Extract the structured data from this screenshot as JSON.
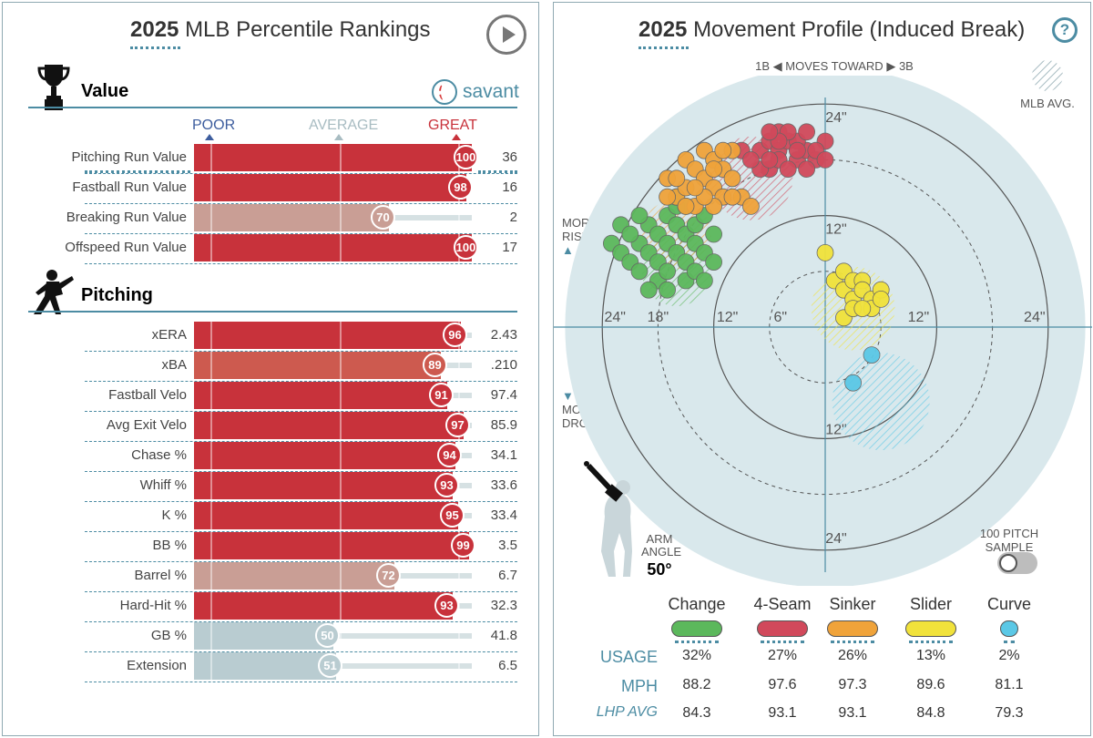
{
  "left": {
    "title_year": "2025",
    "title_rest": "MLB Percentile Rankings",
    "savant_label": "savant",
    "scale": {
      "poor": "POOR",
      "average": "AVERAGE",
      "great": "GREAT"
    },
    "sections": [
      {
        "label": "Value",
        "icon": "trophy-icon"
      },
      {
        "label": "Pitching",
        "icon": "pitcher-icon"
      }
    ],
    "value_rows": [
      {
        "label": "Pitching Run Value",
        "pct": 100,
        "value": "36"
      },
      {
        "label": "Fastball Run Value",
        "pct": 98,
        "value": "16"
      },
      {
        "label": "Breaking Run Value",
        "pct": 70,
        "value": "2"
      },
      {
        "label": "Offspeed Run Value",
        "pct": 100,
        "value": "17"
      }
    ],
    "pitching_rows": [
      {
        "label": "xERA",
        "pct": 96,
        "value": "2.43"
      },
      {
        "label": "xBA",
        "pct": 89,
        "value": ".210"
      },
      {
        "label": "Fastball Velo",
        "pct": 91,
        "value": "97.4"
      },
      {
        "label": "Avg Exit Velo",
        "pct": 97,
        "value": "85.9"
      },
      {
        "label": "Chase %",
        "pct": 94,
        "value": "34.1"
      },
      {
        "label": "Whiff %",
        "pct": 93,
        "value": "33.6"
      },
      {
        "label": "K %",
        "pct": 95,
        "value": "33.4"
      },
      {
        "label": "BB %",
        "pct": 99,
        "value": "3.5"
      },
      {
        "label": "Barrel %",
        "pct": 72,
        "value": "6.7"
      },
      {
        "label": "Hard-Hit %",
        "pct": 93,
        "value": "32.3"
      },
      {
        "label": "GB %",
        "pct": 50,
        "value": "41.8"
      },
      {
        "label": "Extension",
        "pct": 51,
        "value": "6.5"
      }
    ],
    "colors": {
      "great": "#c8323b",
      "good": "#cd5a4f",
      "mid": "#c99e95",
      "average": "#b9ccd1",
      "poor": "#3d5d9e"
    }
  },
  "right": {
    "title_year": "2025",
    "title_rest": "Movement Profile (Induced Break)",
    "help_label": "?",
    "direction": {
      "left": "1B",
      "middle": "MOVES TOWARD",
      "right": "3B"
    },
    "mlb_avg_label": "MLB AVG.",
    "more_rise": [
      "MORE",
      "RISE"
    ],
    "more_drop": [
      "MORE",
      "DROP"
    ],
    "ring_labels": {
      "r24": "24\"",
      "r18": "18\"",
      "r12": "12\"",
      "r6": "6\""
    },
    "arm_angle_label": [
      "ARM",
      "ANGLE"
    ],
    "arm_angle_value": "50°",
    "sample_label": [
      "100 PITCH",
      "SAMPLE"
    ],
    "pitch_types": [
      {
        "name": "Change",
        "color": "#5cb85c",
        "usage": "32%",
        "mph": "88.2",
        "lhp_avg": "84.3"
      },
      {
        "name": "4-Seam",
        "color": "#d1495b",
        "usage": "27%",
        "mph": "97.6",
        "lhp_avg": "93.1"
      },
      {
        "name": "Sinker",
        "color": "#f0a33a",
        "usage": "26%",
        "mph": "97.3",
        "lhp_avg": "93.1"
      },
      {
        "name": "Slider",
        "color": "#f1e23b",
        "usage": "13%",
        "mph": "89.6",
        "lhp_avg": "84.8"
      },
      {
        "name": "Curve",
        "color": "#5bc8e6",
        "usage": "2%",
        "mph": "81.1",
        "lhp_avg": "79.3"
      }
    ],
    "table_labels": {
      "usage": "USAGE",
      "mph": "MPH",
      "lhp_avg": "LHP AVG"
    },
    "chart_data": {
      "type": "scatter",
      "xlabel": "",
      "ylabel": "",
      "xlim": [
        -30,
        30
      ],
      "ylim": [
        -30,
        30
      ],
      "units": "inches",
      "series": [
        {
          "name": "Change",
          "color": "#5cb85c",
          "points": [
            [
              -23,
              9
            ],
            [
              -22,
              11
            ],
            [
              -22,
              8
            ],
            [
              -21,
              7
            ],
            [
              -20,
              6
            ],
            [
              -20,
              9
            ],
            [
              -19,
              11
            ],
            [
              -19,
              8
            ],
            [
              -18,
              10
            ],
            [
              -18,
              7
            ],
            [
              -18,
              5
            ],
            [
              -17,
              12
            ],
            [
              -17,
              9
            ],
            [
              -17,
              6
            ],
            [
              -16,
              11
            ],
            [
              -16,
              8
            ],
            [
              -16,
              13
            ],
            [
              -15,
              10
            ],
            [
              -15,
              7
            ],
            [
              -15,
              5
            ],
            [
              -14,
              11
            ],
            [
              -14,
              9
            ],
            [
              -14,
              6
            ],
            [
              -13,
              12
            ],
            [
              -13,
              8
            ],
            [
              -13,
              5
            ],
            [
              -12,
              10
            ],
            [
              -12,
              7
            ],
            [
              -19,
              4
            ],
            [
              -17,
              4
            ],
            [
              -16,
              14
            ],
            [
              -20,
              12
            ],
            [
              -21,
              10
            ],
            [
              -15,
              13
            ]
          ],
          "avg_center": [
            -16,
            6
          ],
          "avg_radius": 5
        },
        {
          "name": "4-Seam",
          "color": "#d1495b",
          "points": [
            [
              -9,
              19
            ],
            [
              -7,
              19
            ],
            [
              -6,
              20
            ],
            [
              -5,
              19
            ],
            [
              -4,
              20
            ],
            [
              -3,
              18
            ],
            [
              -2,
              19
            ],
            [
              -1,
              18
            ],
            [
              0,
              20
            ],
            [
              -6,
              17
            ],
            [
              -5,
              18
            ],
            [
              -3,
              20
            ],
            [
              -4,
              17
            ],
            [
              -7,
              17
            ],
            [
              -2,
              21
            ],
            [
              -5,
              21
            ],
            [
              -6,
              18
            ],
            [
              -3,
              19
            ],
            [
              -1,
              19
            ],
            [
              -4,
              21
            ],
            [
              -8,
              18
            ],
            [
              -5,
              20
            ],
            [
              0,
              18
            ],
            [
              -2,
              17
            ],
            [
              -6,
              21
            ]
          ],
          "avg_center": [
            -8,
            16
          ],
          "avg_radius": 6
        },
        {
          "name": "Sinker",
          "color": "#f0a33a",
          "points": [
            [
              -17,
              16
            ],
            [
              -16,
              14
            ],
            [
              -15,
              18
            ],
            [
              -15,
              15
            ],
            [
              -14,
              17
            ],
            [
              -14,
              13
            ],
            [
              -13,
              19
            ],
            [
              -13,
              16
            ],
            [
              -12,
              18
            ],
            [
              -12,
              15
            ],
            [
              -11,
              17
            ],
            [
              -11,
              14
            ],
            [
              -10,
              19
            ],
            [
              -10,
              16
            ],
            [
              -9,
              14
            ],
            [
              -12,
              13
            ],
            [
              -13,
              14
            ],
            [
              -15,
              13
            ],
            [
              -16,
              16
            ],
            [
              -11,
              19
            ],
            [
              -14,
              15
            ],
            [
              -10,
              14
            ],
            [
              -8,
              13
            ],
            [
              -17,
              14
            ],
            [
              -12,
              17
            ]
          ],
          "avg_center": [
            -16,
            10
          ],
          "avg_radius": 5
        },
        {
          "name": "Slider",
          "color": "#f1e23b",
          "points": [
            [
              0,
              8
            ],
            [
              1,
              5
            ],
            [
              2,
              4
            ],
            [
              2,
              6
            ],
            [
              3,
              5
            ],
            [
              3,
              3
            ],
            [
              4,
              5
            ],
            [
              4,
              4
            ],
            [
              5,
              3
            ],
            [
              5,
              2
            ],
            [
              6,
              4
            ],
            [
              6,
              3
            ],
            [
              2,
              1
            ],
            [
              3,
              2
            ],
            [
              4,
              2
            ]
          ],
          "avg_center": [
            3,
            2
          ],
          "avg_radius": 6
        },
        {
          "name": "Curve",
          "color": "#5bc8e6",
          "points": [
            [
              5,
              -3
            ],
            [
              3,
              -6
            ]
          ],
          "avg_center": [
            6,
            -8
          ],
          "avg_radius": 7
        }
      ]
    }
  }
}
